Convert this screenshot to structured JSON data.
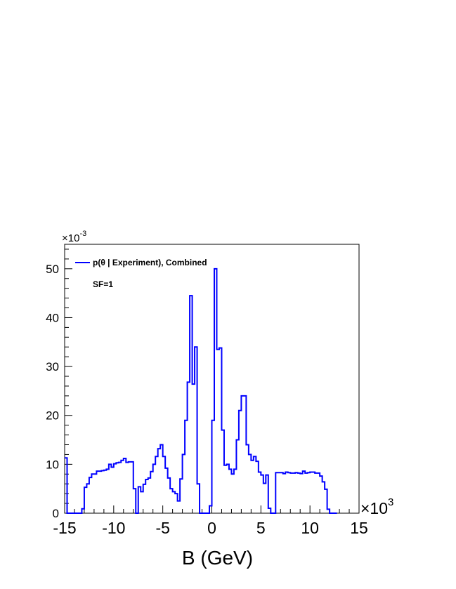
{
  "chart_data": {
    "type": "histogram-step",
    "x_scale_label": "×10",
    "x_scale_exponent": "3",
    "y_scale_label": "×10",
    "y_scale_exponent": "-3",
    "xlabel": "B (GeV)",
    "xlim": [
      -15,
      15
    ],
    "ylim": [
      0,
      55
    ],
    "x_ticks": [
      -15,
      -10,
      -5,
      0,
      5,
      10,
      15
    ],
    "y_ticks": [
      0,
      10,
      20,
      30,
      40,
      50
    ],
    "legend": {
      "entry": "p(θ | Experiment), Combined",
      "note": "SF=1",
      "position": "top-left"
    },
    "series": [
      {
        "name": "p(θ | Experiment), Combined",
        "color": "#0000ff",
        "bin_width": 0.25,
        "bin_start": -15,
        "values": [
          11.3,
          0,
          0,
          0,
          0,
          0,
          0,
          0.9,
          5.3,
          6.0,
          7.3,
          8.0,
          8.0,
          8.6,
          8.6,
          8.7,
          8.8,
          9.0,
          10.0,
          9.4,
          10.1,
          10.3,
          10.4,
          10.8,
          11.2,
          10.4,
          10.5,
          10.5,
          5.0,
          0,
          5.4,
          4.4,
          5.9,
          6.9,
          7.2,
          8.5,
          10.0,
          11.6,
          13.2,
          14.0,
          11.6,
          9.2,
          7.2,
          5.0,
          4.4,
          4.0,
          2.5,
          7.0,
          12.0,
          19.0,
          26.8,
          44.5,
          26.4,
          34.0,
          6.0,
          0,
          0,
          0,
          0,
          1.5,
          19.0,
          50.0,
          33.5,
          33.8,
          17.0,
          9.8,
          10.0,
          9.0,
          8.0,
          9.0,
          15.0,
          21.0,
          24.0,
          24.0,
          14.0,
          12.0,
          10.8,
          11.6,
          10.6,
          8.4,
          7.8,
          6.1,
          7.8,
          1.0,
          0,
          0,
          8.3,
          8.3,
          8.3,
          8.1,
          8.4,
          8.3,
          8.2,
          8.2,
          8.3,
          8.2,
          8.1,
          8.6,
          8.2,
          8.3,
          8.4,
          8.4,
          8.2,
          8.2,
          7.6,
          6.4,
          4.9,
          0.8,
          0,
          0,
          0
        ]
      }
    ]
  }
}
